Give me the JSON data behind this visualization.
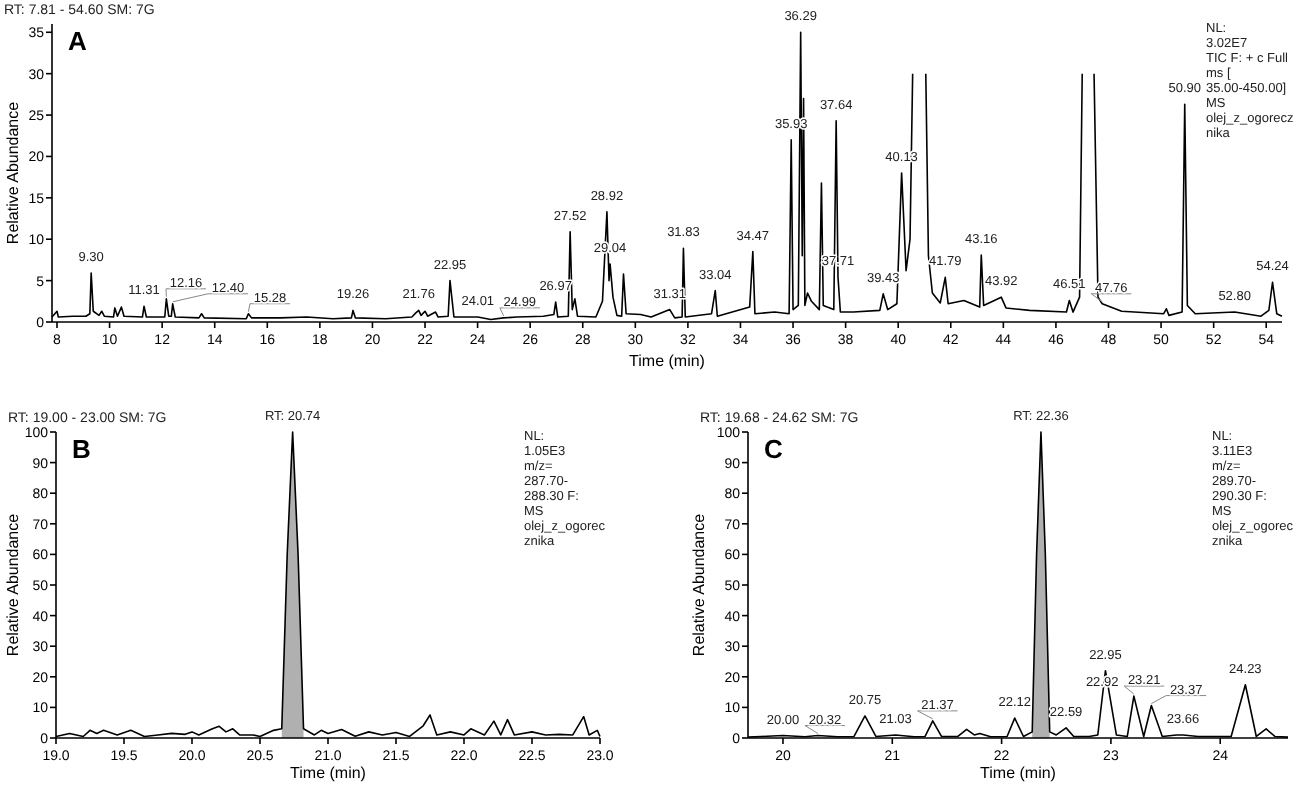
{
  "chart_data": [
    {
      "type": "line",
      "title": "RT: 7.81 - 54.60  SM: 7G",
      "subtitle": "A",
      "xlabel": "Time (min)",
      "ylabel": "Relative Abundance",
      "xlim": [
        7.81,
        54.6
      ],
      "ylim": [
        0,
        36
      ],
      "xticks": [
        8,
        10,
        12,
        14,
        16,
        18,
        20,
        22,
        24,
        26,
        28,
        30,
        32,
        34,
        36,
        38,
        40,
        42,
        44,
        46,
        48,
        50,
        52,
        54
      ],
      "yticks": [
        0,
        5,
        10,
        15,
        20,
        25,
        30,
        35
      ],
      "series": [
        {
          "color": "#000000",
          "x": [
            7.81,
            8.0,
            8.05,
            8.6,
            9.1,
            9.25,
            9.3,
            9.38,
            9.6,
            9.7,
            9.8,
            10.15,
            10.2,
            10.3,
            10.45,
            10.55,
            11.25,
            11.31,
            11.4,
            12.1,
            12.16,
            12.25,
            12.35,
            12.4,
            12.5,
            13.4,
            13.5,
            13.6,
            15.2,
            15.28,
            15.4,
            16.5,
            17.5,
            18.5,
            19.2,
            19.26,
            19.35,
            20.5,
            21.5,
            21.65,
            21.76,
            21.85,
            22.0,
            22.1,
            22.4,
            22.5,
            22.88,
            22.95,
            23.1,
            24.01,
            24.5,
            24.99,
            25.5,
            26.5,
            26.9,
            26.97,
            27.05,
            27.45,
            27.52,
            27.6,
            27.7,
            27.8,
            28.5,
            28.75,
            28.92,
            29.0,
            29.04,
            29.15,
            29.3,
            29.48,
            29.55,
            29.65,
            30.2,
            30.6,
            31.31,
            31.5,
            31.78,
            31.83,
            31.9,
            32.9,
            33.04,
            33.12,
            34.35,
            34.47,
            34.55,
            35.3,
            35.85,
            35.93,
            36.0,
            36.2,
            36.29,
            36.35,
            36.4,
            36.45,
            36.55,
            36.7,
            37.0,
            37.08,
            37.15,
            37.3,
            37.55,
            37.64,
            37.71,
            37.8,
            38.3,
            39.3,
            39.43,
            39.6,
            39.95,
            40.13,
            40.3,
            40.45,
            40.55
          ],
          "values": [
            0.6,
            1.3,
            0.6,
            0.7,
            0.7,
            1.0,
            5.9,
            1.3,
            0.8,
            1.3,
            0.7,
            0.6,
            1.7,
            0.7,
            1.8,
            0.7,
            0.6,
            1.9,
            0.6,
            0.6,
            2.8,
            0.7,
            0.7,
            2.2,
            0.6,
            0.5,
            1.0,
            0.5,
            0.4,
            1.0,
            0.5,
            0.5,
            0.6,
            0.4,
            0.5,
            1.4,
            0.5,
            0.4,
            0.6,
            1.1,
            1.4,
            0.8,
            1.3,
            0.7,
            1.2,
            0.6,
            0.7,
            5.0,
            0.6,
            0.6,
            0.3,
            0.5,
            0.6,
            0.7,
            0.9,
            2.4,
            0.6,
            0.7,
            10.9,
            1.5,
            2.8,
            0.7,
            0.6,
            2.5,
            13.3,
            5.0,
            7.0,
            3.0,
            0.8,
            0.7,
            5.8,
            1.0,
            0.9,
            0.6,
            1.5,
            0.5,
            0.6,
            8.9,
            0.6,
            1.0,
            3.8,
            0.7,
            1.8,
            8.5,
            1.0,
            1.2,
            1.0,
            22,
            1.5,
            2.0,
            35,
            8,
            27,
            2.0,
            3.5,
            2.5,
            1.5,
            16.8,
            2.0,
            1.8,
            1.5,
            24.3,
            5.4,
            1.2,
            1.2,
            1.4,
            3.4,
            1.5,
            2.2,
            18,
            6.2,
            10,
            30
          ]
        },
        {
          "color": "#000000",
          "x": [
            41.05,
            41.15,
            41.3,
            41.6,
            41.79,
            41.9,
            42.5,
            43.1,
            43.16,
            43.25,
            43.92,
            44.1,
            45.0,
            46.4,
            46.51,
            46.65,
            46.9,
            47.0
          ],
          "values": [
            30,
            8,
            3.5,
            2.3,
            5.4,
            2.2,
            2.6,
            1.8,
            8.1,
            2.0,
            3.0,
            1.7,
            1.4,
            1.2,
            2.6,
            1.2,
            3.0,
            30
          ]
        },
        {
          "color": "#000000",
          "x": [
            47.45,
            47.6,
            47.76,
            48.5,
            50.1,
            50.2,
            50.3,
            50.8,
            50.9,
            51.0,
            51.3,
            52.8,
            53.8,
            54.1,
            54.24,
            54.4,
            54.6
          ],
          "values": [
            30,
            3.0,
            2.2,
            1.3,
            1.0,
            1.6,
            0.8,
            1.2,
            26.3,
            2.0,
            1.0,
            1.2,
            0.7,
            1.4,
            4.8,
            1.0,
            0.7
          ]
        }
      ],
      "annotations": [
        "NL:\n3.02E7\nTIC F: + c Full\nms [\n35.00-450.00]\nMS\nolej_z_ogorecz\nnika",
        {
          "text": "9.30",
          "x": 9.3,
          "y": 5.9
        },
        {
          "text": "11.31",
          "x": 11.31,
          "y": 1.9
        },
        {
          "text": "12.16",
          "x": 12.16,
          "y": 2.8
        },
        {
          "text": "12.40",
          "x": 12.4,
          "y": 2.2
        },
        {
          "text": "15.28",
          "x": 15.28,
          "y": 1.0
        },
        {
          "text": "19.26",
          "x": 19.26,
          "y": 1.4
        },
        {
          "text": "21.76",
          "x": 21.76,
          "y": 1.4
        },
        {
          "text": "22.95",
          "x": 22.95,
          "y": 5.0
        },
        {
          "text": "24.01",
          "x": 24.01,
          "y": 0.6
        },
        {
          "text": "24.99",
          "x": 24.99,
          "y": 0.5
        },
        {
          "text": "26.97",
          "x": 26.97,
          "y": 2.4
        },
        {
          "text": "27.52",
          "x": 27.52,
          "y": 10.9
        },
        {
          "text": "28.92",
          "x": 28.92,
          "y": 13.3
        },
        {
          "text": "29.04",
          "x": 29.04,
          "y": 7.0
        },
        {
          "text": "31.31",
          "x": 31.31,
          "y": 1.5
        },
        {
          "text": "31.83",
          "x": 31.83,
          "y": 8.9
        },
        {
          "text": "33.04",
          "x": 33.04,
          "y": 3.8
        },
        {
          "text": "34.47",
          "x": 34.47,
          "y": 8.5
        },
        {
          "text": "35.93",
          "x": 35.93,
          "y": 22
        },
        {
          "text": "36.29",
          "x": 36.29,
          "y": 35
        },
        {
          "text": "37.64",
          "x": 37.64,
          "y": 24.3
        },
        {
          "text": "37.71",
          "x": 37.71,
          "y": 5.4
        },
        {
          "text": "39.43",
          "x": 39.43,
          "y": 3.4
        },
        {
          "text": "40.13",
          "x": 40.13,
          "y": 18
        },
        {
          "text": "41.79",
          "x": 41.79,
          "y": 5.4
        },
        {
          "text": "43.16",
          "x": 43.16,
          "y": 8.1
        },
        {
          "text": "43.92",
          "x": 43.92,
          "y": 3.0
        },
        {
          "text": "46.51",
          "x": 46.51,
          "y": 2.6
        },
        {
          "text": "47.76",
          "x": 47.76,
          "y": 2.2
        },
        {
          "text": "50.90",
          "x": 50.9,
          "y": 26.3
        },
        {
          "text": "52.80",
          "x": 52.8,
          "y": 1.2
        },
        {
          "text": "54.24",
          "x": 54.24,
          "y": 4.8
        }
      ]
    },
    {
      "type": "line",
      "title": "RT: 19.00 - 23.00  SM: 7G",
      "subtitle": "B",
      "xlabel": "Time (min)",
      "ylabel": "Relative Abundance",
      "xlim": [
        19,
        23
      ],
      "ylim": [
        0,
        100
      ],
      "xticks": [
        {
          "value": 19,
          "label": "19.0"
        },
        19.5,
        {
          "value": 20,
          "label": "20.0"
        },
        20.5,
        {
          "value": 21,
          "label": "21.0"
        },
        21.5,
        {
          "value": 22,
          "label": "22.0"
        },
        22.5,
        {
          "value": 23,
          "label": "23.0"
        }
      ],
      "yticks": [
        0,
        10,
        20,
        30,
        40,
        50,
        60,
        70,
        80,
        90,
        100
      ],
      "series": [
        {
          "type": "area",
          "color": "#b0b0b0",
          "x": [
            20.66,
            20.7,
            20.74,
            20.78,
            20.82
          ],
          "values": [
            3,
            60,
            100,
            60,
            3
          ]
        },
        {
          "color": "#000000",
          "x": [
            19.0,
            19.1,
            19.2,
            19.25,
            19.3,
            19.35,
            19.45,
            19.55,
            19.65,
            19.75,
            19.85,
            19.95,
            20.0,
            20.05,
            20.15,
            20.2,
            20.25,
            20.3,
            20.35,
            20.45,
            20.5,
            20.6,
            20.66,
            20.7,
            20.74,
            20.78,
            20.82,
            20.9,
            20.95,
            21.0,
            21.1,
            21.2,
            21.3,
            21.4,
            21.5,
            21.6,
            21.7,
            21.75,
            21.8,
            21.9,
            22.0,
            22.05,
            22.15,
            22.22,
            22.27,
            22.32,
            22.37,
            22.5,
            22.6,
            22.7,
            22.8,
            22.88,
            22.92,
            22.98,
            23.0
          ],
          "values": [
            0.5,
            1.5,
            0.5,
            2.5,
            1.5,
            2.5,
            1,
            2.5,
            0.5,
            1,
            1.5,
            1.2,
            2,
            1,
            3,
            3.8,
            2,
            3,
            1,
            1,
            0.5,
            2.5,
            3,
            60,
            100,
            60,
            3,
            1,
            2.5,
            1.5,
            2.8,
            0.6,
            2,
            1,
            1.8,
            0.5,
            4,
            7.5,
            1,
            2,
            1,
            3,
            1,
            5.5,
            1,
            6,
            1,
            2,
            1,
            1.2,
            1,
            7,
            1,
            2.5,
            0.5
          ]
        }
      ],
      "annotations": [
        "NL:\n1.05E3\nm/z=\n287.70-\n288.30 F:\nMS\nolej_z_ogorec\nznika",
        {
          "text": "RT: 20.74",
          "x": 20.74,
          "y": 100
        }
      ]
    },
    {
      "type": "line",
      "title": "RT: 19.68 - 24.62  SM: 7G",
      "subtitle": "C",
      "xlabel": "Time (min)",
      "ylabel": "Relative Abundance",
      "xlim": [
        19.68,
        24.62
      ],
      "ylim": [
        0,
        100
      ],
      "xticks": [
        20,
        21,
        22,
        23,
        24
      ],
      "yticks": [
        0,
        10,
        20,
        30,
        40,
        50,
        60,
        70,
        80,
        90,
        100
      ],
      "series": [
        {
          "type": "area",
          "color": "#b0b0b0",
          "x": [
            22.28,
            22.32,
            22.36,
            22.4,
            22.44
          ],
          "values": [
            2,
            60,
            100,
            60,
            2
          ]
        },
        {
          "color": "#000000",
          "x": [
            19.68,
            19.8,
            20.0,
            20.2,
            20.32,
            20.5,
            20.65,
            20.75,
            20.85,
            21.03,
            21.2,
            21.3,
            21.37,
            21.45,
            21.6,
            21.68,
            21.75,
            21.8,
            21.9,
            22.05,
            22.12,
            22.2,
            22.28,
            22.32,
            22.36,
            22.4,
            22.44,
            22.5,
            22.59,
            22.66,
            22.8,
            22.88,
            22.92,
            22.95,
            23.05,
            23.15,
            23.21,
            23.3,
            23.37,
            23.47,
            23.6,
            23.66,
            23.8,
            24.1,
            24.23,
            24.33,
            24.42,
            24.5,
            24.62
          ],
          "values": [
            0.3,
            0.5,
            0.8,
            0.4,
            0.8,
            0.4,
            0.5,
            7.2,
            0.5,
            1,
            0.4,
            0.5,
            5.6,
            0.5,
            0.5,
            2.8,
            1,
            1.5,
            0.4,
            0.5,
            6.5,
            0.5,
            2,
            60,
            100,
            60,
            2,
            1,
            3.3,
            0.5,
            0.5,
            1,
            13,
            22,
            1,
            0.5,
            13.7,
            0.5,
            10.6,
            0.5,
            1,
            1,
            0.5,
            0.5,
            17.4,
            0.5,
            3,
            0.5,
            0.3
          ]
        }
      ],
      "annotations": [
        "NL:\n3.11E3\nm/z=\n289.70-\n290.30 F:\nMS\nolej_z_ogorec\nznika",
        {
          "text": "RT: 22.36",
          "x": 22.36,
          "y": 100
        },
        {
          "text": "20.00",
          "x": 20.0,
          "y": 0.8
        },
        {
          "text": "20.32",
          "x": 20.32,
          "y": 0.8
        },
        {
          "text": "20.75",
          "x": 20.75,
          "y": 7.2
        },
        {
          "text": "21.03",
          "x": 21.03,
          "y": 1
        },
        {
          "text": "21.37",
          "x": 21.37,
          "y": 5.6
        },
        {
          "text": "22.12",
          "x": 22.12,
          "y": 6.5
        },
        {
          "text": "22.59",
          "x": 22.59,
          "y": 3.3
        },
        {
          "text": "22.92",
          "x": 22.92,
          "y": 13
        },
        {
          "text": "22.95",
          "x": 22.95,
          "y": 22
        },
        {
          "text": "23.21",
          "x": 23.21,
          "y": 13.7
        },
        {
          "text": "23.37",
          "x": 23.37,
          "y": 10.6
        },
        {
          "text": "23.66",
          "x": 23.66,
          "y": 1
        },
        {
          "text": "24.23",
          "x": 24.23,
          "y": 17.4
        }
      ]
    }
  ]
}
